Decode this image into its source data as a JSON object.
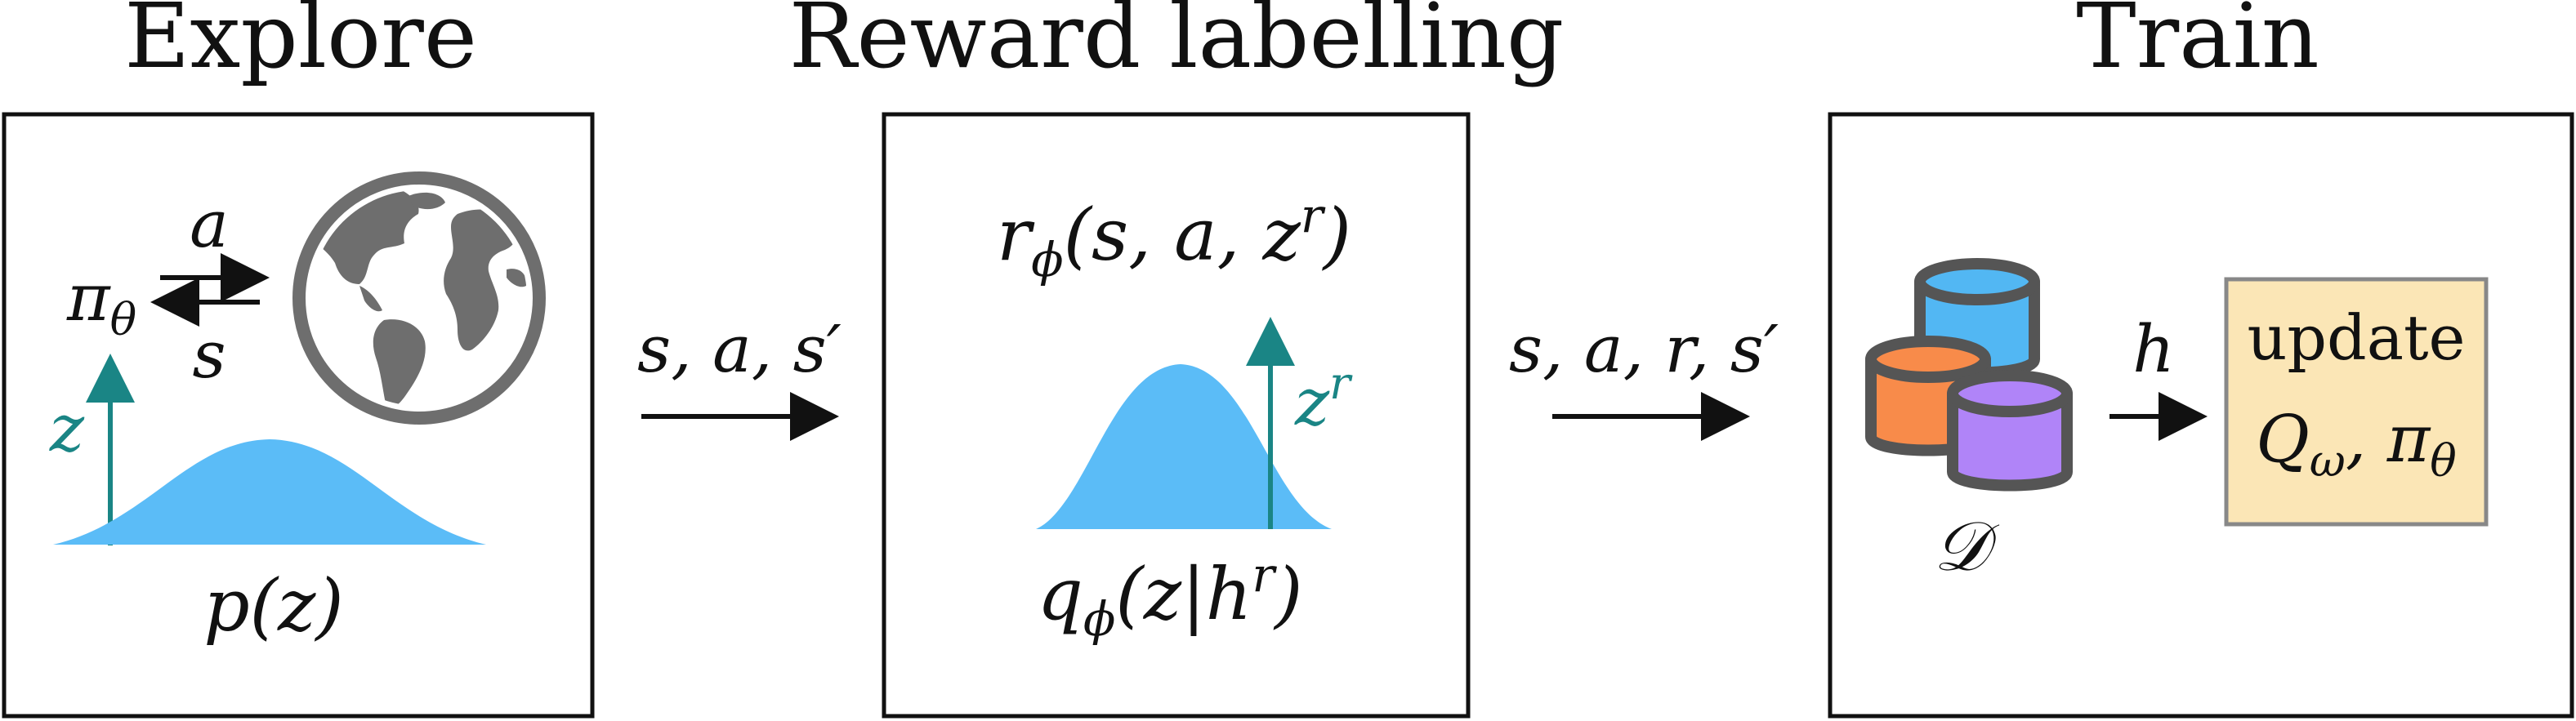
{
  "colors": {
    "stroke": "#111111",
    "teal": "#1a8585",
    "gaussian": "#5bbcf7",
    "globe": "#6e6e6e",
    "db_blue": "#52b7f3",
    "db_orange": "#f88b4a",
    "db_purple": "#b084f8",
    "db_outline": "#555555",
    "update_fill": "#fbe6b6",
    "update_border": "#888888"
  },
  "icons": {
    "globe": "globe-icon",
    "database": "database-icon"
  },
  "explore": {
    "title": "Explore",
    "policy": "π",
    "policy_sub": "θ",
    "action": "a",
    "state": "s",
    "latent": "z",
    "prior": "p(z)"
  },
  "transition1": {
    "label": "s, a, s′"
  },
  "reward": {
    "title": "Reward labelling",
    "reward_fn_r": "r",
    "reward_fn_sub": "ϕ",
    "reward_fn_args": "(s, a, z",
    "reward_fn_sup": "r",
    "reward_fn_close": ")",
    "latent": "z",
    "latent_sup": "r",
    "posterior_q": "q",
    "posterior_sub": "ϕ",
    "posterior_args": "(z|h",
    "posterior_sup": "r",
    "posterior_close": ")"
  },
  "transition2": {
    "label": "s, a, r, s′"
  },
  "train": {
    "title": "Train",
    "dataset": "𝒟",
    "history": "h",
    "update_word": "update",
    "q": "Q",
    "q_sub": "ω",
    "comma": ", ",
    "pi": "π",
    "pi_sub": "θ"
  }
}
